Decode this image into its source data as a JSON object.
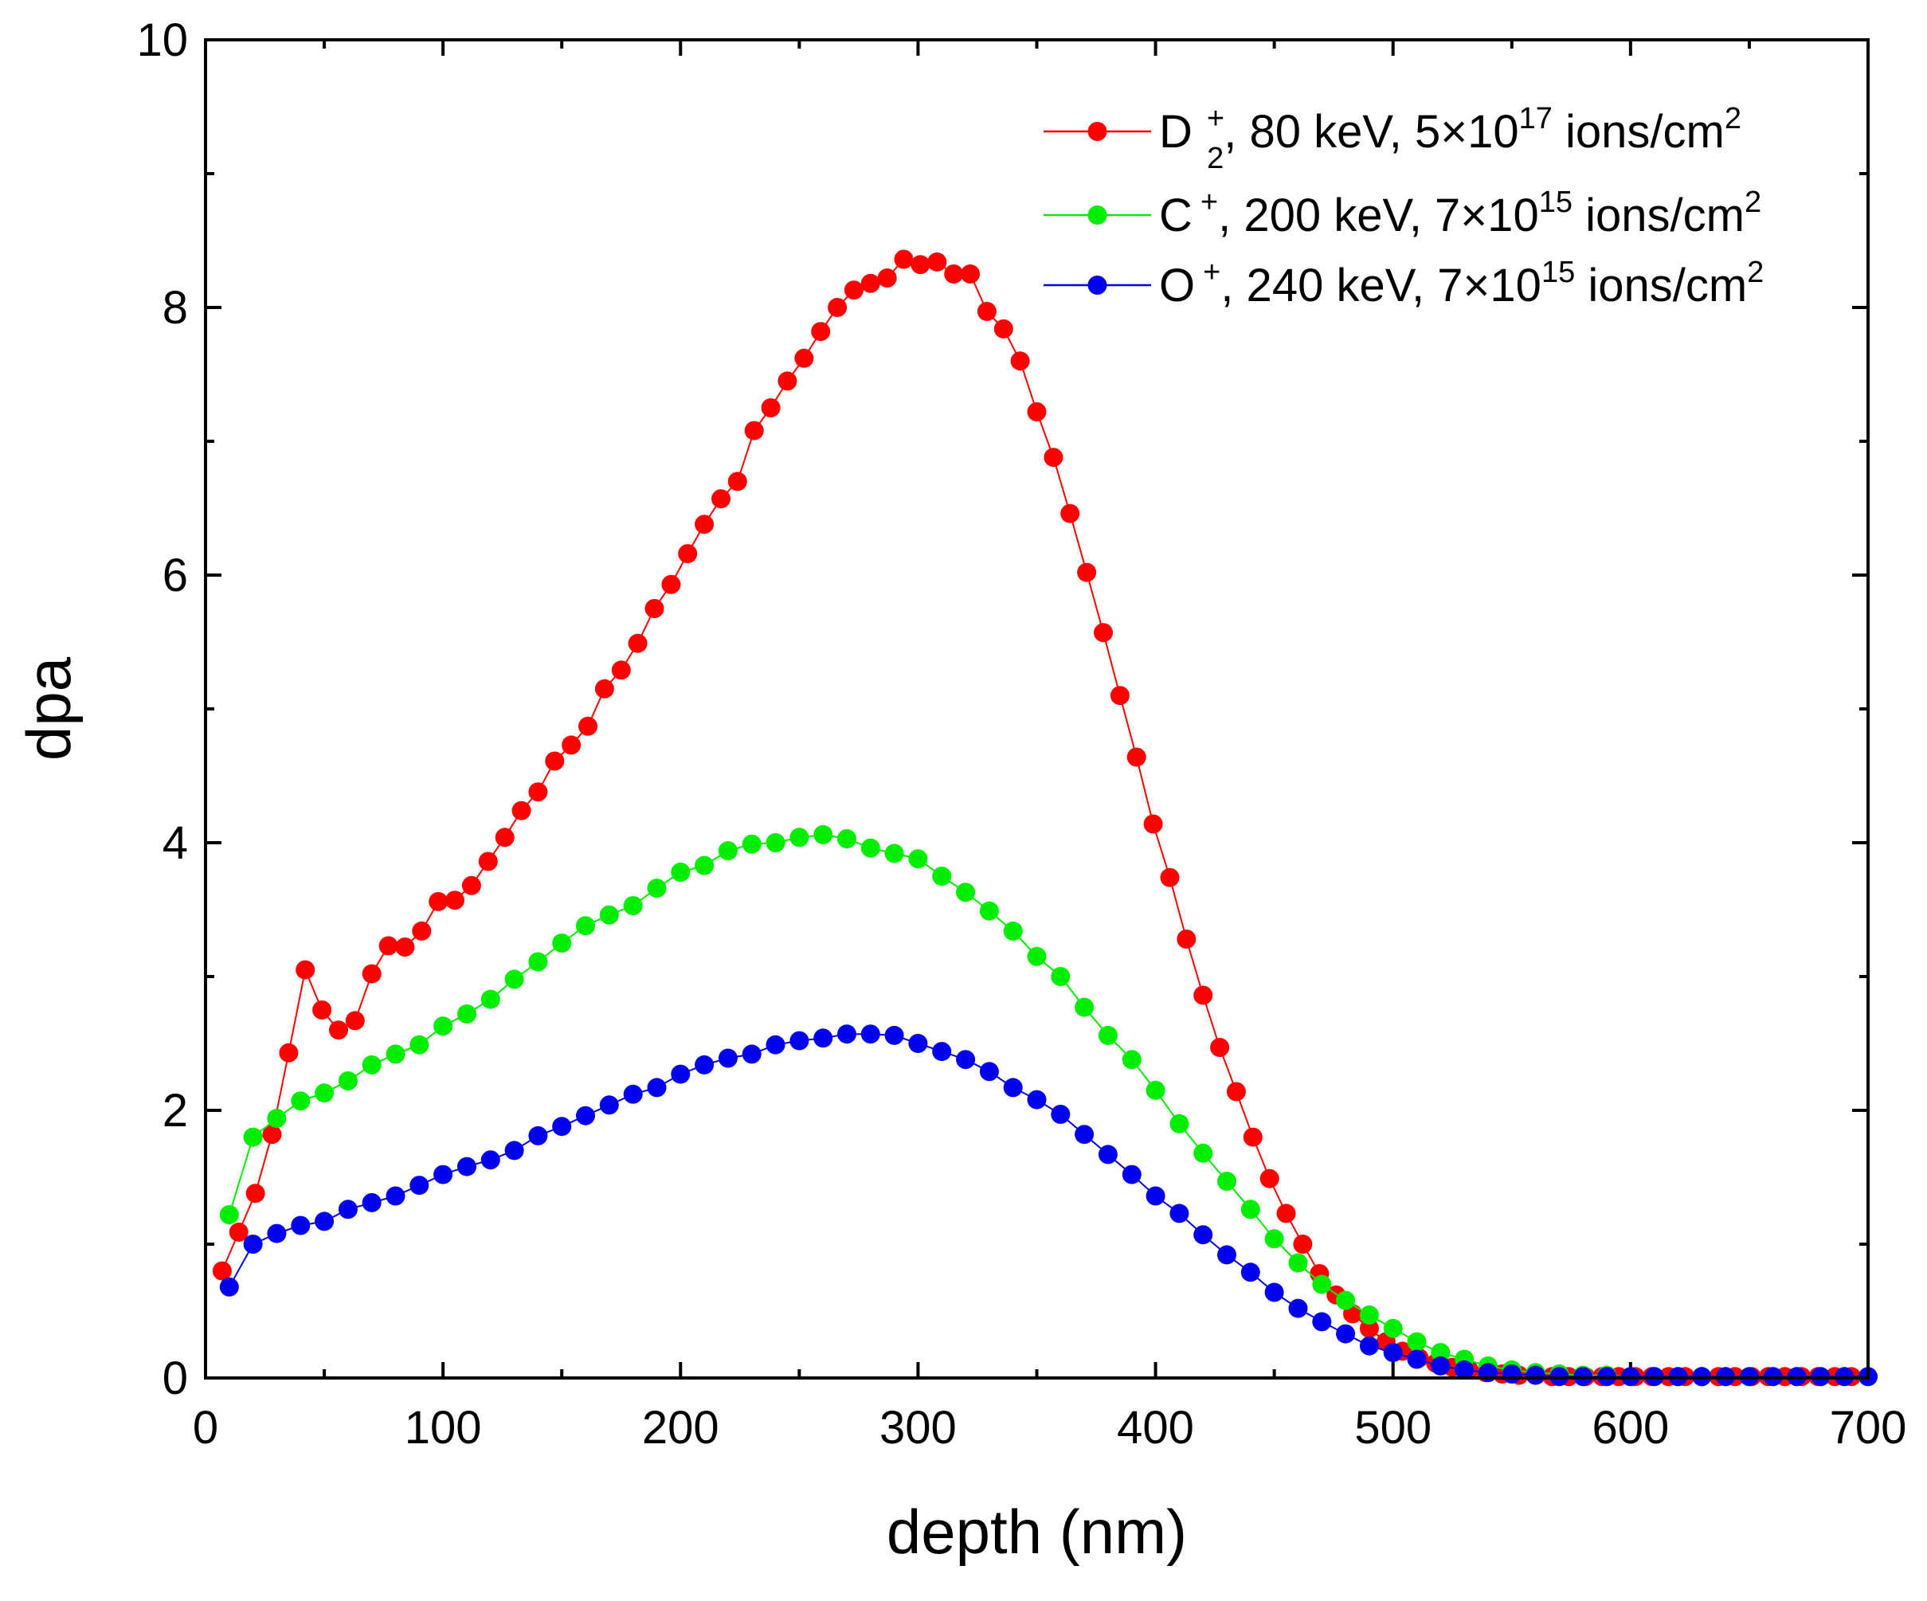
{
  "chart_data": {
    "type": "line",
    "title": "",
    "xlabel": "depth (nm)",
    "ylabel": "dpa",
    "xlim": [
      0,
      700
    ],
    "ylim": [
      0,
      10
    ],
    "xticks": [
      0,
      100,
      200,
      300,
      400,
      500,
      600,
      700
    ],
    "yticks": [
      0,
      2,
      4,
      6,
      8,
      10
    ],
    "grid": false,
    "legend_position": "top-right",
    "series": [
      {
        "name": "D2+, 80 keV, 5×10^17 ions/cm^2",
        "legend": {
          "ion": "D",
          "sub": "2",
          "sup": "+",
          "text": ", 80 keV, 5×10",
          "exp": "17",
          "unit": " ions/cm",
          "unit_exp": "2"
        },
        "color": "#ff0000",
        "x": [
          7,
          14,
          21,
          28,
          35,
          42,
          49,
          56,
          63,
          70,
          77,
          84,
          91,
          98,
          105,
          112,
          119,
          126,
          133,
          140,
          147,
          154,
          161,
          168,
          175,
          182,
          189,
          196,
          203,
          210,
          217,
          224,
          231,
          238,
          245,
          252,
          259,
          266,
          273,
          280,
          287,
          294,
          301,
          308,
          315,
          322,
          329,
          336,
          343,
          350,
          357,
          364,
          371,
          378,
          385,
          392,
          399,
          406,
          413,
          420,
          427,
          434,
          441,
          448,
          455,
          462,
          469,
          476,
          483,
          490,
          497,
          504,
          511,
          518,
          525,
          532,
          539,
          546,
          553,
          560,
          567,
          574,
          581,
          588,
          595,
          602,
          609,
          616,
          623,
          630,
          637,
          644,
          651,
          658,
          665,
          672,
          679,
          686,
          693
        ],
        "y": [
          0.8,
          1.09,
          1.38,
          1.82,
          2.43,
          3.05,
          2.75,
          2.6,
          2.67,
          3.02,
          3.23,
          3.22,
          3.34,
          3.56,
          3.57,
          3.68,
          3.86,
          4.04,
          4.24,
          4.38,
          4.61,
          4.73,
          4.87,
          5.15,
          5.29,
          5.49,
          5.75,
          5.93,
          6.16,
          6.38,
          6.57,
          6.7,
          7.08,
          7.25,
          7.45,
          7.62,
          7.82,
          8.0,
          8.13,
          8.18,
          8.22,
          8.36,
          8.32,
          8.34,
          8.25,
          8.25,
          7.97,
          7.84,
          7.6,
          7.22,
          6.88,
          6.46,
          6.02,
          5.57,
          5.1,
          4.64,
          4.14,
          3.74,
          3.28,
          2.86,
          2.47,
          2.14,
          1.8,
          1.49,
          1.23,
          1.0,
          0.78,
          0.62,
          0.48,
          0.37,
          0.27,
          0.2,
          0.15,
          0.11,
          0.08,
          0.06,
          0.04,
          0.03,
          0.02,
          0.02,
          0.01,
          0.01,
          0.01,
          0.01,
          0.01,
          0.01,
          0.01,
          0.01,
          0.01,
          0.01,
          0.01,
          0.01,
          0.01,
          0.01,
          0.01,
          0.01,
          0.01,
          0.01,
          0.01
        ]
      },
      {
        "name": "C+, 200 keV, 7×10^15 ions/cm^2",
        "legend": {
          "ion": "C",
          "sub": "",
          "sup": "+",
          "text": ", 200 keV, 7×10",
          "exp": "15",
          "unit": " ions/cm",
          "unit_exp": "2"
        },
        "color": "#00ee00",
        "x": [
          10,
          20,
          30,
          40,
          50,
          60,
          70,
          80,
          90,
          100,
          110,
          120,
          130,
          140,
          150,
          160,
          170,
          180,
          190,
          200,
          210,
          220,
          230,
          240,
          250,
          260,
          270,
          280,
          290,
          300,
          310,
          320,
          330,
          340,
          350,
          360,
          370,
          380,
          390,
          400,
          410,
          420,
          430,
          440,
          450,
          460,
          470,
          480,
          490,
          500,
          510,
          520,
          530,
          540,
          550,
          560,
          570,
          580,
          590,
          600,
          610,
          620,
          630,
          640,
          650,
          660,
          670,
          680,
          690,
          700
        ],
        "y": [
          1.22,
          1.8,
          1.94,
          2.07,
          2.13,
          2.22,
          2.34,
          2.42,
          2.49,
          2.63,
          2.72,
          2.83,
          2.98,
          3.11,
          3.25,
          3.38,
          3.46,
          3.53,
          3.66,
          3.78,
          3.83,
          3.94,
          3.99,
          4.0,
          4.04,
          4.06,
          4.03,
          3.96,
          3.92,
          3.88,
          3.75,
          3.63,
          3.49,
          3.34,
          3.15,
          3.0,
          2.77,
          2.56,
          2.38,
          2.15,
          1.9,
          1.68,
          1.47,
          1.26,
          1.04,
          0.86,
          0.7,
          0.58,
          0.47,
          0.37,
          0.27,
          0.19,
          0.14,
          0.09,
          0.06,
          0.04,
          0.03,
          0.02,
          0.02,
          0.01,
          0.01,
          0.01,
          0.01,
          0.01,
          0.01,
          0.01,
          0.01,
          0.01,
          0.01,
          0.01
        ]
      },
      {
        "name": "O+, 240 keV, 7×10^15 ions/cm^2",
        "legend": {
          "ion": "O",
          "sub": "",
          "sup": "+",
          "text": ", 240 keV, 7×10",
          "exp": "15",
          "unit": " ions/cm",
          "unit_exp": "2"
        },
        "color": "#0000ee",
        "x": [
          10,
          20,
          30,
          40,
          50,
          60,
          70,
          80,
          90,
          100,
          110,
          120,
          130,
          140,
          150,
          160,
          170,
          180,
          190,
          200,
          210,
          220,
          230,
          240,
          250,
          260,
          270,
          280,
          290,
          300,
          310,
          320,
          330,
          340,
          350,
          360,
          370,
          380,
          390,
          400,
          410,
          420,
          430,
          440,
          450,
          460,
          470,
          480,
          490,
          500,
          510,
          520,
          530,
          540,
          550,
          560,
          570,
          580,
          590,
          600,
          610,
          620,
          630,
          640,
          650,
          660,
          670,
          680,
          690,
          700
        ],
        "y": [
          0.68,
          1.0,
          1.08,
          1.14,
          1.17,
          1.26,
          1.31,
          1.36,
          1.44,
          1.52,
          1.58,
          1.63,
          1.7,
          1.81,
          1.88,
          1.96,
          2.04,
          2.12,
          2.17,
          2.27,
          2.34,
          2.39,
          2.42,
          2.49,
          2.52,
          2.54,
          2.57,
          2.57,
          2.56,
          2.5,
          2.44,
          2.38,
          2.29,
          2.17,
          2.08,
          1.97,
          1.82,
          1.67,
          1.52,
          1.36,
          1.23,
          1.07,
          0.92,
          0.79,
          0.64,
          0.52,
          0.42,
          0.33,
          0.24,
          0.19,
          0.14,
          0.09,
          0.06,
          0.04,
          0.03,
          0.02,
          0.01,
          0.01,
          0.01,
          0.01,
          0.01,
          0.01,
          0.01,
          0.01,
          0.01,
          0.01,
          0.01,
          0.01,
          0.01,
          0.01
        ]
      }
    ]
  }
}
